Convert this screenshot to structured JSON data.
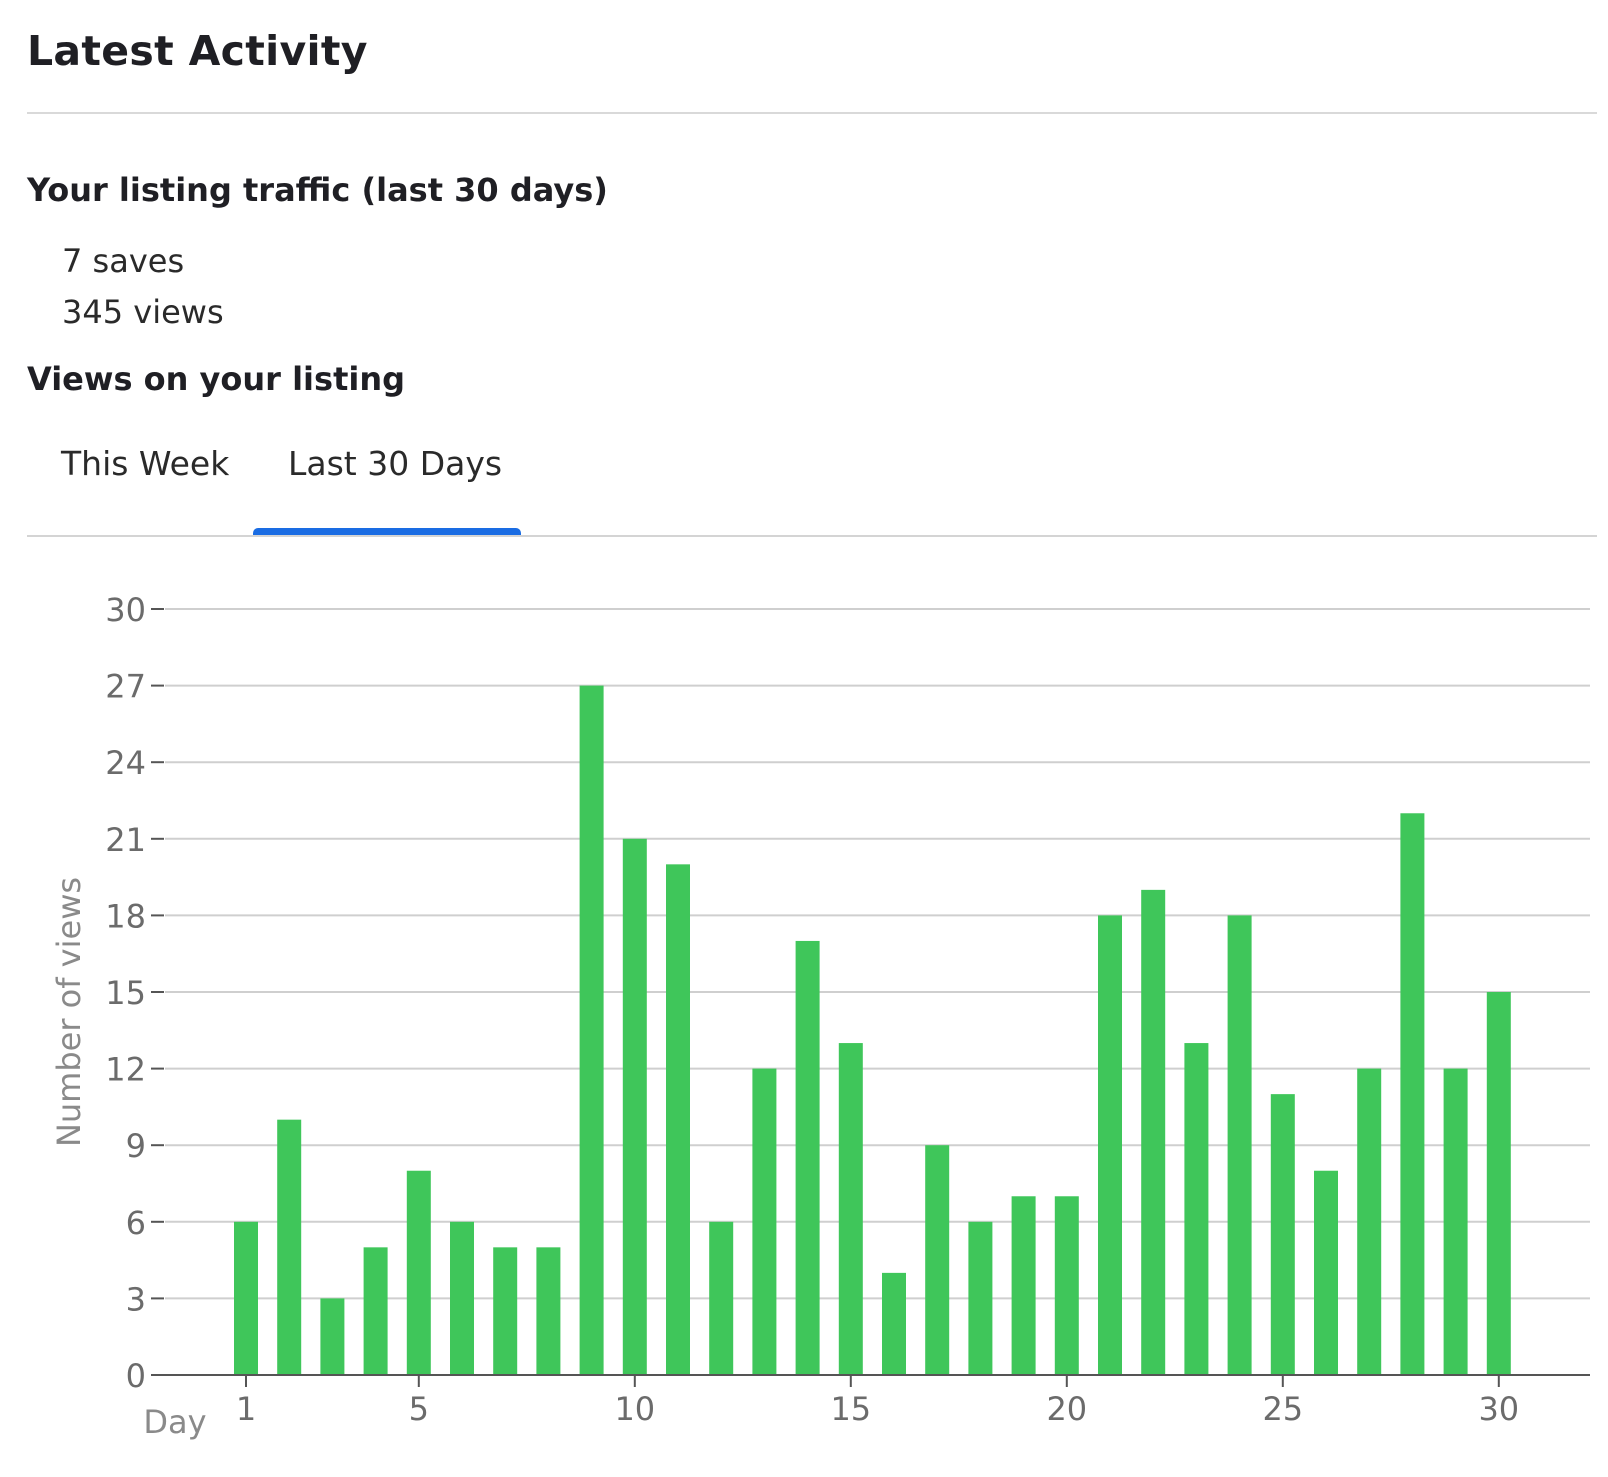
{
  "header": {
    "title": "Latest Activity"
  },
  "traffic": {
    "heading": "Your listing traffic (last 30 days)",
    "saves": "7 saves",
    "views": "345 views"
  },
  "views_section": {
    "heading": "Views on your listing",
    "tabs": [
      {
        "label": "This Week",
        "active": false
      },
      {
        "label": "Last 30 Days",
        "active": true
      }
    ]
  },
  "colors": {
    "bar": "#3fc65a",
    "tab_active": "#1a6ce3",
    "grid": "#cfcfcf",
    "axis": "#555555",
    "tick_text": "#6b6b6b"
  },
  "chart_data": {
    "type": "bar",
    "x": [
      1,
      2,
      3,
      4,
      5,
      6,
      7,
      8,
      9,
      10,
      11,
      12,
      13,
      14,
      15,
      16,
      17,
      18,
      19,
      20,
      21,
      22,
      23,
      24,
      25,
      26,
      27,
      28,
      29,
      30
    ],
    "values": [
      6,
      10,
      3,
      5,
      8,
      6,
      5,
      5,
      27,
      21,
      20,
      6,
      12,
      17,
      13,
      4,
      9,
      6,
      7,
      7,
      18,
      19,
      13,
      18,
      11,
      8,
      12,
      22,
      12,
      15
    ],
    "xlabel": "Day",
    "ylabel": "Number of views",
    "ylim": [
      0,
      30
    ],
    "yticks": [
      0,
      3,
      6,
      9,
      12,
      15,
      18,
      21,
      24,
      27,
      30
    ],
    "xticks": [
      1,
      5,
      10,
      15,
      20,
      25,
      30
    ],
    "grid": true
  }
}
